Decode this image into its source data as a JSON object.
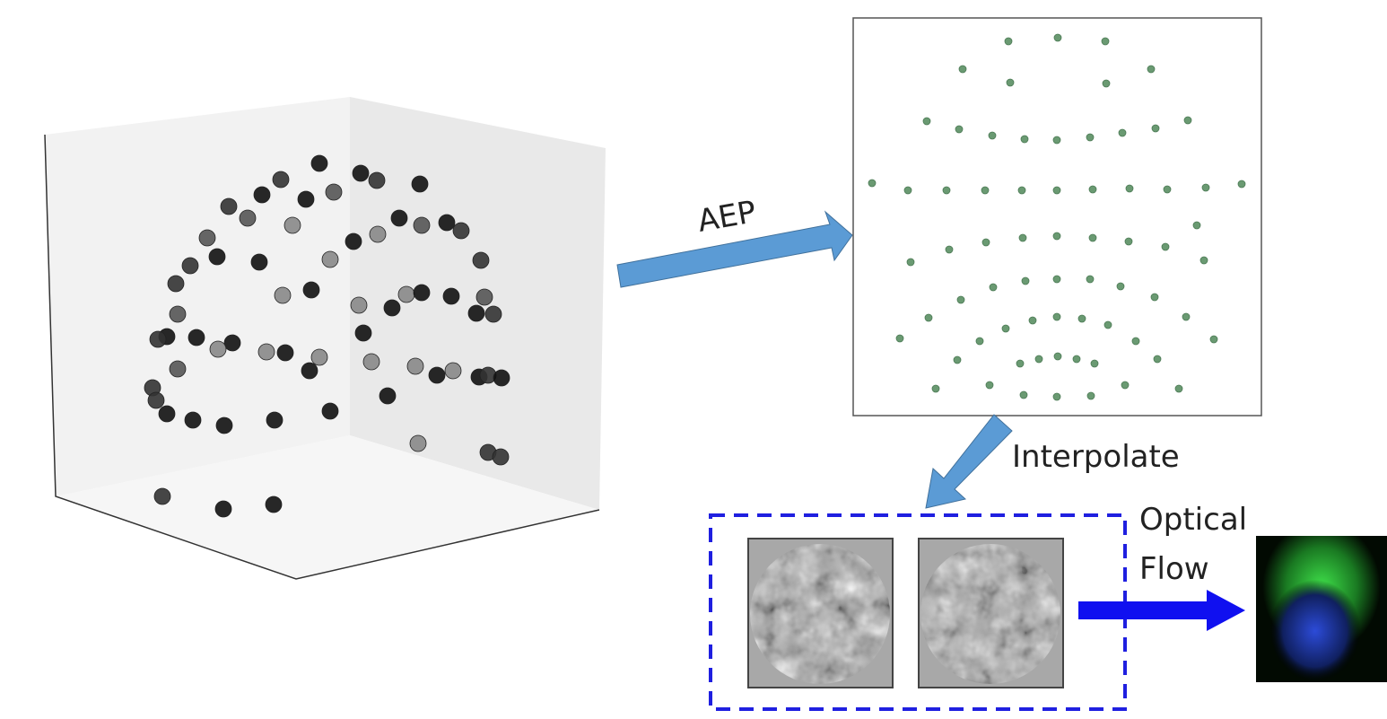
{
  "labels": {
    "aep": "AEP",
    "interpolate": "Interpolate",
    "optical": "Optical",
    "flow": "Flow"
  }
}
